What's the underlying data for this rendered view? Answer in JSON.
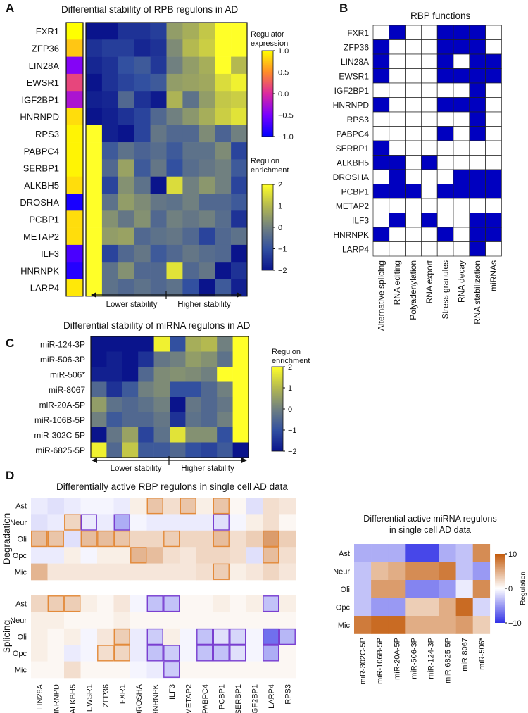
{
  "panels": {
    "A": {
      "letter": "A",
      "title": "Differential stability of RPB regulons in AD",
      "rows": [
        "FXR1",
        "ZFP36",
        "LIN28A",
        "EWSR1",
        "IGF2BP1",
        "HNRNPD",
        "RPS3",
        "PABPC4",
        "SERBP1",
        "ALKBH5",
        "DROSHA",
        "PCBP1",
        "METAP2",
        "ILF3",
        "HNRNPK",
        "LARP4"
      ],
      "expression": [
        1.0,
        0.75,
        -0.45,
        0.15,
        -0.25,
        0.85,
        0.95,
        0.95,
        0.95,
        0.85,
        -0.9,
        0.85,
        0.85,
        -0.7,
        -0.85,
        0.9
      ],
      "enrichment": [
        [
          -2.0,
          -2.0,
          -1.5,
          -1.5,
          -1.3,
          0.5,
          0.8,
          1.2,
          2.0,
          2.0
        ],
        [
          -1.5,
          -1.3,
          -1.3,
          -1.7,
          -1.5,
          0.2,
          1.0,
          1.3,
          2.0,
          2.0
        ],
        [
          -1.7,
          -1.5,
          -1.0,
          -0.8,
          -1.4,
          0.0,
          0.5,
          0.8,
          2.0,
          1.0
        ],
        [
          -2.0,
          -1.5,
          -1.2,
          -1.0,
          -0.8,
          0.5,
          0.6,
          0.7,
          1.5,
          1.8
        ],
        [
          -1.8,
          -1.7,
          -0.5,
          -1.5,
          -1.9,
          0.9,
          -0.3,
          0.5,
          1.2,
          1.3
        ],
        [
          -2.0,
          -1.8,
          -1.5,
          -1.2,
          -0.5,
          0.0,
          0.4,
          0.8,
          1.3,
          1.6
        ],
        [
          2.0,
          -1.8,
          -2.0,
          -1.2,
          -0.2,
          -0.5,
          -0.5,
          0.2,
          -0.6,
          0.0
        ],
        [
          2.0,
          -0.8,
          -0.3,
          -0.6,
          -0.4,
          -0.8,
          -0.3,
          -0.3,
          0.2,
          -1.2
        ],
        [
          2.0,
          -0.5,
          0.6,
          -0.8,
          -0.2,
          -1.0,
          -0.4,
          -0.2,
          0.0,
          -0.8
        ],
        [
          2.0,
          -1.2,
          0.3,
          -0.3,
          -2.2,
          1.5,
          0.0,
          0.4,
          0.0,
          -1.2
        ],
        [
          2.0,
          -0.3,
          0.5,
          0.2,
          -0.2,
          -0.3,
          0.0,
          -0.5,
          -0.5,
          -0.8
        ],
        [
          2.0,
          0.3,
          -0.2,
          0.3,
          -0.5,
          0.0,
          -0.2,
          0.0,
          -0.4,
          -1.5
        ],
        [
          2.0,
          0.5,
          0.6,
          -0.5,
          -0.3,
          -0.2,
          -0.5,
          -1.2,
          -0.5,
          -0.3
        ],
        [
          2.0,
          -1.2,
          -0.5,
          -0.2,
          -0.8,
          -0.5,
          -0.2,
          -0.4,
          -0.5,
          -2.0
        ],
        [
          2.0,
          -0.3,
          0.3,
          -0.5,
          -0.5,
          1.6,
          -0.5,
          -0.2,
          -2.3,
          -1.5
        ],
        [
          2.0,
          -0.3,
          -0.5,
          -0.3,
          -0.5,
          -0.3,
          -1.0,
          -2.2,
          -0.8,
          -1.8
        ]
      ],
      "expr_legend": {
        "title": "Regulator expression",
        "ticks": [
          "1.0",
          "0.5",
          "0.0",
          "−0.5",
          "−1.0"
        ]
      },
      "enr_legend": {
        "title": "Regulon enrichment",
        "ticks": [
          "2",
          "1",
          "0",
          "−1",
          "−2"
        ]
      },
      "arrow_low": "Lower stability",
      "arrow_high": "Higher stability"
    },
    "B": {
      "letter": "B",
      "title": "RBP functions",
      "rows": [
        "FXR1",
        "ZFP36",
        "LIN28A",
        "EWSR1",
        "IGF2BP1",
        "HNRNPD",
        "RPS3",
        "PABPC4",
        "SERBP1",
        "ALKBH5",
        "DROSHA",
        "PCBP1",
        "METAP2",
        "ILF3",
        "HNRNPK",
        "LARP4"
      ],
      "cols": [
        "Alternative splicing",
        "RNA editing",
        "Polyadenylation",
        "RNA export",
        "Stress granules",
        "RNA decay",
        "RNA stabilization",
        "miRNAs"
      ],
      "matrix": [
        [
          0,
          1,
          0,
          0,
          1,
          1,
          1,
          0
        ],
        [
          1,
          0,
          0,
          0,
          1,
          1,
          1,
          0
        ],
        [
          1,
          0,
          0,
          0,
          1,
          0,
          1,
          1
        ],
        [
          1,
          0,
          0,
          0,
          1,
          1,
          1,
          1
        ],
        [
          0,
          0,
          0,
          0,
          0,
          0,
          1,
          0
        ],
        [
          1,
          0,
          0,
          0,
          1,
          1,
          1,
          0
        ],
        [
          0,
          0,
          0,
          0,
          0,
          0,
          1,
          0
        ],
        [
          0,
          0,
          0,
          0,
          1,
          0,
          1,
          0
        ],
        [
          1,
          0,
          0,
          0,
          0,
          0,
          0,
          0
        ],
        [
          1,
          1,
          0,
          1,
          0,
          0,
          0,
          0
        ],
        [
          0,
          1,
          0,
          0,
          0,
          1,
          1,
          1
        ],
        [
          1,
          1,
          1,
          0,
          1,
          1,
          1,
          1
        ],
        [
          0,
          0,
          0,
          0,
          0,
          0,
          0,
          0
        ],
        [
          0,
          1,
          0,
          1,
          0,
          0,
          1,
          1
        ],
        [
          1,
          0,
          0,
          0,
          1,
          0,
          1,
          1
        ],
        [
          0,
          0,
          0,
          0,
          0,
          0,
          1,
          0
        ]
      ],
      "color_on": "#0000c0"
    },
    "C": {
      "letter": "C",
      "title": "Differential stability of miRNA regulons in AD",
      "rows": [
        "miR-124-3P",
        "miR-506-3P",
        "miR-506*",
        "miR-8067",
        "miR-20A-5P",
        "miR-106B-5P",
        "miR-302C-5P",
        "miR-6825-5P"
      ],
      "enrichment": [
        [
          -2.0,
          -2.0,
          -2.2,
          -2.0,
          1.8,
          -1.0,
          0.8,
          1.0,
          0.0,
          2.0
        ],
        [
          -2.0,
          -1.8,
          -2.0,
          -1.5,
          -0.2,
          0.0,
          0.5,
          0.3,
          -0.3,
          2.0
        ],
        [
          -1.8,
          -1.8,
          -2.2,
          -0.5,
          0.2,
          0.3,
          0.2,
          0.0,
          2.0,
          2.0
        ],
        [
          -0.5,
          -1.5,
          -0.8,
          0.0,
          0.2,
          -1.0,
          -1.0,
          -0.5,
          0.0,
          2.0
        ],
        [
          0.5,
          -0.3,
          -0.5,
          -0.3,
          0.0,
          -2.0,
          -0.2,
          -0.5,
          -0.2,
          2.0
        ],
        [
          0.0,
          -0.8,
          -0.5,
          -0.5,
          -0.2,
          -1.5,
          -0.3,
          -0.5,
          0.0,
          2.0
        ],
        [
          -2.0,
          -0.2,
          0.6,
          -1.2,
          -0.3,
          1.6,
          0.3,
          0.3,
          -1.0,
          2.0
        ],
        [
          1.8,
          -0.5,
          1.2,
          -0.8,
          -0.8,
          -0.5,
          -1.0,
          -1.2,
          -0.8,
          -2.2
        ]
      ],
      "legend": {
        "title": "Regulon enrichment",
        "ticks": [
          "2",
          "1",
          "0",
          "−1",
          "−2"
        ]
      },
      "arrow_low": "Lower stability",
      "arrow_high": "Higher stability"
    },
    "D": {
      "letter": "D",
      "title": "Differentially active RBP regulons in single cell AD data",
      "cols": [
        "LIN28A",
        "HNRNPD",
        "ALKBH5",
        "EWSR1",
        "ZFP36",
        "FXR1",
        "DROSHA",
        "HNRNPK",
        "ILF3",
        "METAP2",
        "PABPC4",
        "PCBP1",
        "SERBP1",
        "IGF2BP1",
        "LARP4",
        "RPS3"
      ],
      "rows": [
        "Ast",
        "Neur",
        "Oli",
        "Opc",
        "Mic"
      ],
      "groups": [
        {
          "label": "Degradation",
          "values": [
            [
              -0.1,
              -0.15,
              -0.1,
              -0.05,
              -0.05,
              -0.1,
              0.1,
              0.35,
              0.2,
              0.35,
              0.1,
              0.35,
              0.05,
              -0.15,
              0.2,
              0.15
            ],
            [
              -0.15,
              -0.1,
              0.25,
              -0.1,
              -0.1,
              -0.4,
              -0.05,
              -0.1,
              -0.1,
              -0.1,
              -0.1,
              -0.15,
              -0.05,
              0.1,
              0.2,
              0.05
            ],
            [
              0.4,
              0.35,
              -0.15,
              0.4,
              0.4,
              0.35,
              0.25,
              0.25,
              0.3,
              0.25,
              0.25,
              0.4,
              0.2,
              0.3,
              0.6,
              0.3
            ],
            [
              -0.1,
              -0.1,
              0.1,
              -0.05,
              0.1,
              0.1,
              0.45,
              0.4,
              0.2,
              0.15,
              0.25,
              0.25,
              0.2,
              -0.15,
              0.4,
              0.2
            ],
            [
              0.45,
              0.15,
              0.15,
              0.15,
              0.15,
              0.15,
              0.15,
              0.15,
              0.15,
              0.15,
              0.2,
              0.3,
              0.1,
              0.15,
              0.25,
              0.15
            ]
          ],
          "outlined": [
            [
              0,
              7
            ],
            [
              0,
              9
            ],
            [
              0,
              11
            ],
            [
              1,
              2
            ],
            [
              1,
              3
            ],
            [
              1,
              5
            ],
            [
              1,
              11
            ],
            [
              2,
              0
            ],
            [
              2,
              1
            ],
            [
              2,
              3
            ],
            [
              2,
              4
            ],
            [
              2,
              5
            ],
            [
              2,
              8
            ],
            [
              2,
              11
            ],
            [
              2,
              14
            ],
            [
              3,
              6
            ],
            [
              3,
              14
            ],
            [
              4,
              11
            ]
          ],
          "outline_colors": {
            "pos": "#e38a3a",
            "neg": "#7a3fd0"
          }
        },
        {
          "label": "Splicing",
          "values": [
            [
              0.25,
              0.3,
              0.3,
              0.1,
              0.05,
              0.15,
              -0.05,
              -0.3,
              -0.3,
              0.05,
              0.05,
              0.1,
              0.05,
              0.1,
              -0.3,
              0.1
            ],
            [
              0.1,
              0.1,
              0.05,
              0.05,
              0.05,
              0.1,
              0.05,
              0.05,
              0.05,
              0.05,
              0.05,
              0.05,
              0.05,
              0.05,
              0.05,
              0.05
            ],
            [
              0.1,
              0.05,
              0.1,
              -0.05,
              0.15,
              0.3,
              -0.1,
              -0.25,
              0.1,
              -0.05,
              -0.3,
              -0.15,
              -0.2,
              -0.05,
              -0.7,
              -0.35
            ],
            [
              0.1,
              0.05,
              -0.1,
              -0.05,
              0.2,
              0.25,
              -0.1,
              -0.3,
              -0.25,
              -0.05,
              -0.3,
              -0.3,
              -0.15,
              -0.05,
              -0.4,
              0.05
            ],
            [
              0.05,
              0.05,
              0.2,
              0.05,
              0.05,
              0.05,
              -0.05,
              -0.1,
              -0.25,
              0.05,
              0.05,
              0.05,
              0.05,
              0.05,
              0.05,
              0.05
            ]
          ],
          "outlined": [
            [
              0,
              1
            ],
            [
              0,
              2
            ],
            [
              0,
              7
            ],
            [
              0,
              8
            ],
            [
              0,
              14
            ],
            [
              2,
              5
            ],
            [
              2,
              7
            ],
            [
              2,
              10
            ],
            [
              2,
              11
            ],
            [
              2,
              12
            ],
            [
              2,
              14
            ],
            [
              2,
              15
            ],
            [
              3,
              4
            ],
            [
              3,
              5
            ],
            [
              3,
              7
            ],
            [
              3,
              8
            ],
            [
              3,
              10
            ],
            [
              3,
              11
            ],
            [
              3,
              12
            ],
            [
              3,
              14
            ],
            [
              4,
              8
            ]
          ],
          "outline_colors": {
            "pos": "#e38a3a",
            "neg": "#7a3fd0"
          }
        }
      ]
    },
    "E": {
      "title_line1": "Differential active miRNA regulons",
      "title_line2": "in single cell AD data",
      "rows": [
        "Ast",
        "Neur",
        "Oli",
        "Opc",
        "Mic"
      ],
      "cols": [
        "miR-302C-5P",
        "miR-106B-5P",
        "miR-20A-5P",
        "miR-506-3P",
        "miR-124-3P",
        "miR-6825-5P",
        "miR-8067",
        "miR-506*"
      ],
      "values": [
        [
          -4,
          -4,
          -4,
          -9,
          -9,
          -4,
          -3,
          7
        ],
        [
          -3,
          4,
          5,
          7,
          7,
          8,
          -3,
          -5
        ],
        [
          -3,
          6,
          6,
          -6,
          -6,
          -5,
          -1,
          7
        ],
        [
          -3,
          -5,
          -5,
          3,
          3,
          5,
          9,
          -2
        ],
        [
          8,
          9,
          9,
          5,
          5,
          5,
          6,
          3
        ]
      ],
      "legend": {
        "title": "Regulation",
        "ticks": [
          "10",
          "0",
          "−10"
        ]
      }
    }
  }
}
